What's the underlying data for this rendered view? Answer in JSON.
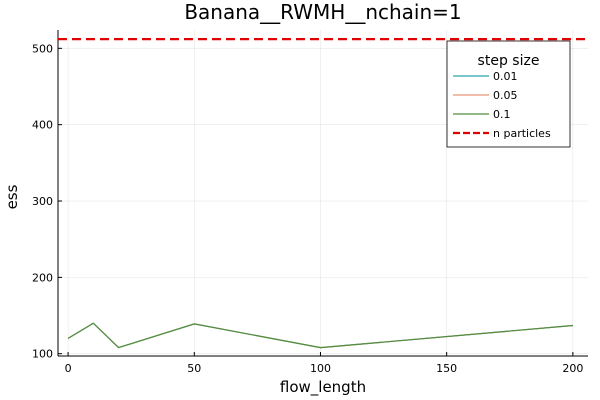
{
  "chart_data": {
    "type": "line",
    "title": "Banana__RWMH__nchain=1",
    "xlabel": "flow_length",
    "ylabel": "ess",
    "xlim": [
      -4,
      206
    ],
    "ylim": [
      97,
      524
    ],
    "xticks": [
      0,
      50,
      100,
      150,
      200
    ],
    "yticks": [
      100,
      200,
      300,
      400,
      500
    ],
    "grid": true,
    "legend": {
      "title": "step size",
      "position": "top-right"
    },
    "x": [
      0,
      10,
      20,
      50,
      100,
      200
    ],
    "series": [
      {
        "name": "0.01",
        "color": "#2aa6b1",
        "values": [
          120,
          140,
          108,
          139,
          108,
          137
        ]
      },
      {
        "name": "0.05",
        "color": "#e9967a",
        "values": [
          120,
          140,
          108,
          139,
          108,
          137
        ]
      },
      {
        "name": "0.1",
        "color": "#4f8f3f",
        "values": [
          120,
          140,
          108,
          139,
          108,
          137
        ]
      }
    ],
    "reference_line": {
      "name": "n particles",
      "y": 512,
      "color": "#e00000",
      "style": "dashed"
    }
  }
}
